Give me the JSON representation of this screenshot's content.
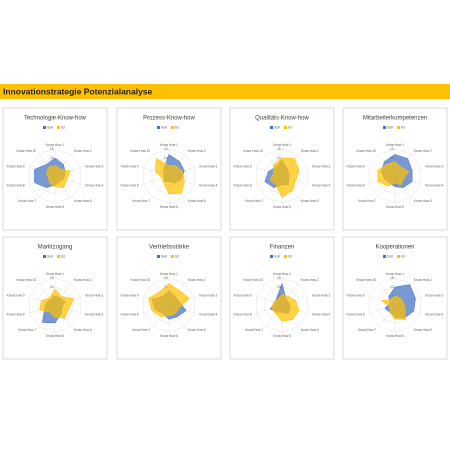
{
  "page_title": "Innovationstrategie Potenzialanalyse",
  "chart_data": [
    {
      "type": "radar",
      "title": "Technologie-Know-how",
      "rlim": [
        0,
        15
      ],
      "rticks": [
        0,
        5,
        10,
        15
      ],
      "categories": [
        "Know How 1",
        "Know How 2",
        "Know How 3",
        "Know How 4",
        "Know How 5",
        "Know How 6",
        "Know How 7",
        "Know How 8",
        "Know How 9",
        "Know How 10"
      ],
      "series": [
        {
          "name": "Soll",
          "color": "#4472c4",
          "values": [
            10,
            8,
            6,
            5,
            4,
            5,
            8,
            12,
            12,
            8
          ]
        },
        {
          "name": "Ist",
          "color": "#ffc000",
          "values": [
            6,
            5,
            9,
            7,
            8,
            6,
            5,
            4,
            5,
            6
          ]
        }
      ]
    },
    {
      "type": "radar",
      "title": "Prozess-Know-how",
      "rlim": [
        0,
        15
      ],
      "rticks": [
        0,
        5,
        10,
        15
      ],
      "categories": [
        "Know How 1",
        "Know How 2",
        "Know How 3",
        "Know How 4",
        "Know How 5",
        "Know How 6",
        "Know How 7",
        "Know How 8",
        "Know How 9",
        "Know How 10"
      ],
      "series": [
        {
          "name": "Soll",
          "color": "#4472c4",
          "values": [
            12,
            10,
            9,
            7,
            5,
            3,
            4,
            3,
            3,
            5
          ]
        },
        {
          "name": "Ist",
          "color": "#ffc000",
          "values": [
            6,
            7,
            8,
            9,
            12,
            10,
            5,
            4,
            8,
            12
          ]
        }
      ]
    },
    {
      "type": "radar",
      "title": "Qualitäts-Know-how",
      "rlim": [
        0,
        15
      ],
      "rticks": [
        0,
        5,
        10,
        15
      ],
      "categories": [
        "Know How 1",
        "Know How 2",
        "Know How 3",
        "Know How 4",
        "Know How 5",
        "Know How 6",
        "Know How 7",
        "Know How 8",
        "Know How 9",
        "Know How 10"
      ],
      "series": [
        {
          "name": "Soll",
          "color": "#4472c4",
          "values": [
            9,
            5,
            4,
            4,
            6,
            5,
            8,
            10,
            8,
            6
          ]
        },
        {
          "name": "Ist",
          "color": "#ffc000",
          "values": [
            10,
            12,
            10,
            8,
            10,
            12,
            6,
            7,
            5,
            8
          ]
        }
      ]
    },
    {
      "type": "radar",
      "title": "Mitarbeiterkompetenzen",
      "rlim": [
        0,
        15
      ],
      "rticks": [
        0,
        5,
        10,
        15
      ],
      "categories": [
        "Know How 1",
        "Know How 2",
        "Know How 3",
        "Know How 4",
        "Know How 5",
        "Know How 6",
        "Know How 7",
        "Know How 8",
        "Know How 9",
        "Know How 10"
      ],
      "series": [
        {
          "name": "Soll",
          "color": "#4472c4",
          "values": [
            12,
            12,
            10,
            10,
            8,
            6,
            5,
            6,
            8,
            10
          ]
        },
        {
          "name": "Ist",
          "color": "#ffc000",
          "values": [
            8,
            6,
            8,
            5,
            6,
            4,
            7,
            10,
            10,
            8
          ]
        }
      ]
    },
    {
      "type": "radar",
      "title": "Marktzugang",
      "rlim": [
        0,
        15
      ],
      "rticks": [
        0,
        5,
        10,
        15
      ],
      "categories": [
        "Know How 1",
        "Know How 2",
        "Know How 3",
        "Know How 4",
        "Know How 5",
        "Know How 6",
        "Know How 7",
        "Know How 8",
        "Know How 9",
        "Know How 10"
      ],
      "series": [
        {
          "name": "Soll",
          "color": "#4472c4",
          "values": [
            5,
            5,
            6,
            4,
            6,
            10,
            12,
            6,
            5,
            4
          ]
        },
        {
          "name": "Ist",
          "color": "#ffc000",
          "values": [
            9,
            6,
            11,
            8,
            9,
            7,
            5,
            9,
            8,
            5
          ]
        }
      ]
    },
    {
      "type": "radar",
      "title": "Vertriebsstärke",
      "rlim": [
        0,
        15
      ],
      "rticks": [
        0,
        5,
        10,
        15
      ],
      "categories": [
        "Know How 1",
        "Know How 2",
        "Know How 3",
        "Know How 4",
        "Know How 5",
        "Know How 6",
        "Know How 7",
        "Know How 8",
        "Know How 9",
        "Know How 10"
      ],
      "series": [
        {
          "name": "Soll",
          "color": "#4472c4",
          "values": [
            8,
            6,
            6,
            10,
            8,
            8,
            6,
            8,
            10,
            6
          ]
        },
        {
          "name": "Ist",
          "color": "#ffc000",
          "values": [
            12,
            10,
            12,
            6,
            6,
            6,
            8,
            10,
            12,
            9
          ]
        }
      ]
    },
    {
      "type": "radar",
      "title": "Finanzen",
      "rlim": [
        0,
        15
      ],
      "rticks": [
        0,
        5,
        10,
        15
      ],
      "categories": [
        "Know How 1",
        "Know How 2",
        "Know How 3",
        "Know How 4",
        "Know How 5",
        "Know How 6",
        "Know How 7",
        "Know How 8",
        "Know How 9",
        "Know How 10"
      ],
      "series": [
        {
          "name": "Soll",
          "color": "#4472c4",
          "values": [
            12,
            4,
            4,
            5,
            6,
            4,
            5,
            7,
            4,
            5
          ]
        },
        {
          "name": "Ist",
          "color": "#ffc000",
          "values": [
            6,
            6,
            8,
            10,
            10,
            9,
            6,
            6,
            5,
            4
          ]
        }
      ]
    },
    {
      "type": "radar",
      "title": "Kooperationen",
      "rlim": [
        0,
        15
      ],
      "rticks": [
        0,
        5,
        10,
        15
      ],
      "categories": [
        "Know How 1",
        "Know How 2",
        "Know How 3",
        "Know How 4",
        "Know How 5",
        "Know How 6",
        "Know How 7",
        "Know How 8",
        "Know How 9",
        "Know How 10"
      ],
      "series": [
        {
          "name": "Soll",
          "color": "#4472c4",
          "values": [
            10,
            14,
            12,
            11,
            9,
            7,
            5,
            6,
            3,
            6
          ]
        },
        {
          "name": "Ist",
          "color": "#ffc000",
          "values": [
            5,
            5,
            5,
            6,
            10,
            8,
            5,
            3,
            8,
            4
          ]
        }
      ]
    }
  ]
}
